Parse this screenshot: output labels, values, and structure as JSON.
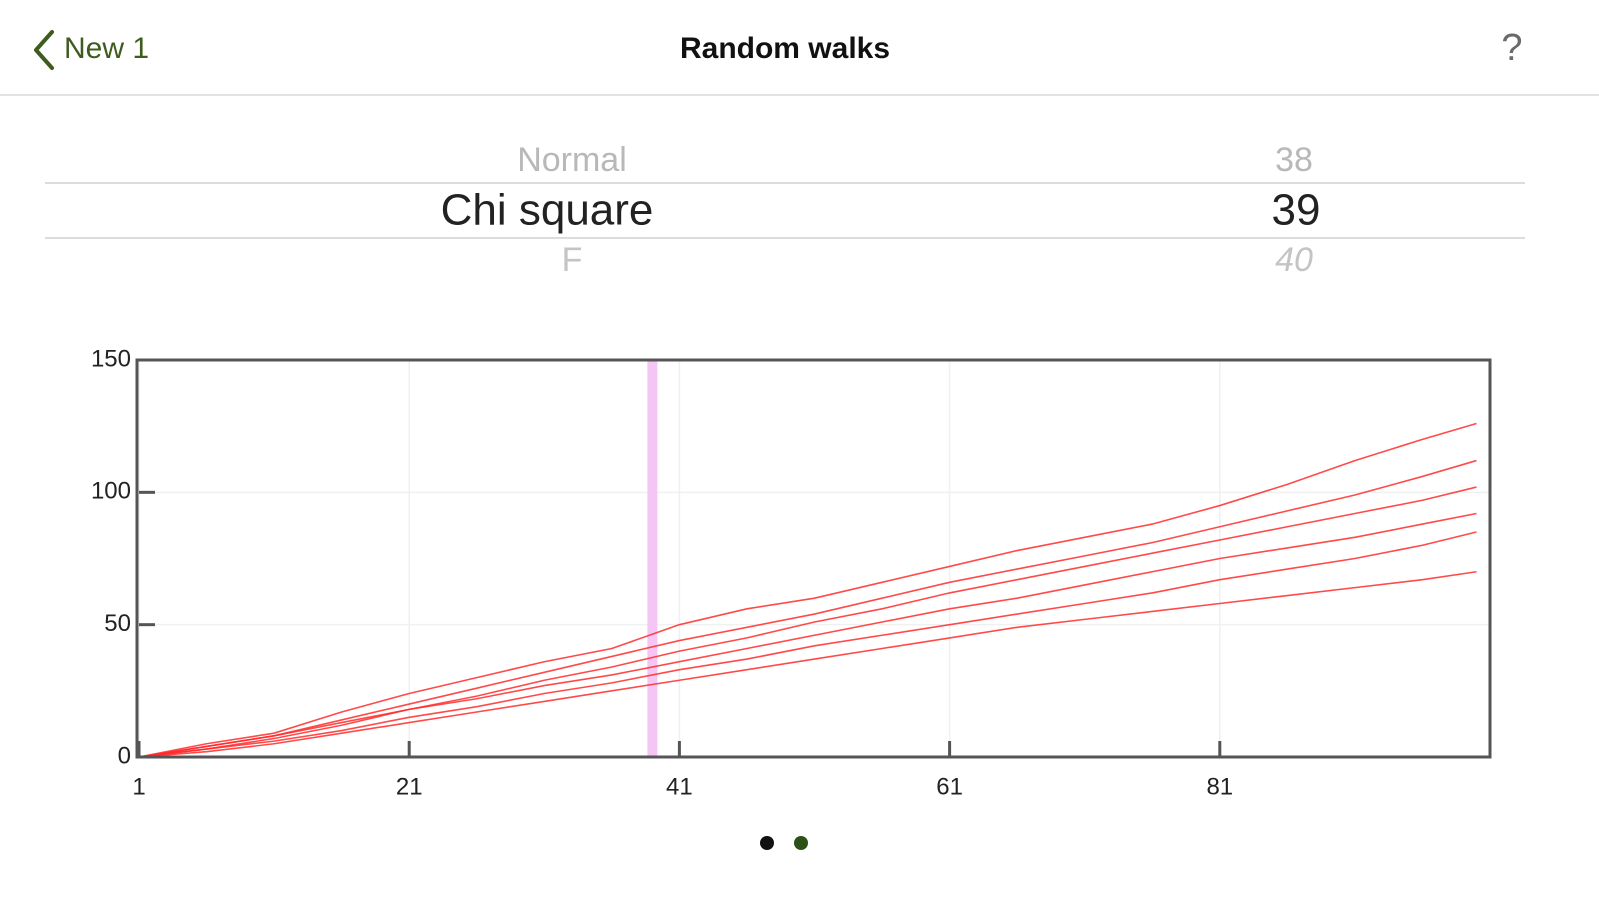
{
  "nav": {
    "back": "New 1",
    "title": "Random walks",
    "help": "?"
  },
  "picker": {
    "previous": {
      "label": "Normal",
      "number": 38
    },
    "selected": {
      "label": "Chi square",
      "number": 39
    },
    "next": {
      "label": "F",
      "number": 40
    }
  },
  "chart_data": {
    "type": "line",
    "color": "#ff2a2a",
    "grid": true,
    "xlim": [
      1,
      101
    ],
    "xticks": [
      1,
      21,
      41,
      61,
      81
    ],
    "ylim": [
      0,
      150
    ],
    "yticks": [
      0,
      50,
      100,
      150
    ],
    "x": [
      1,
      6,
      11,
      16,
      21,
      26,
      31,
      36,
      41,
      46,
      51,
      56,
      61,
      66,
      71,
      76,
      81,
      86,
      91,
      96,
      100
    ],
    "series": [
      {
        "values": [
          0,
          5,
          9,
          17,
          24,
          30,
          36,
          41,
          50,
          56,
          60,
          66,
          72,
          78,
          83,
          88,
          95,
          103,
          112,
          120,
          126
        ]
      },
      {
        "values": [
          0,
          4,
          8,
          14,
          20,
          26,
          32,
          38,
          44,
          49,
          54,
          60,
          66,
          71,
          76,
          81,
          87,
          93,
          99,
          106,
          112
        ]
      },
      {
        "values": [
          0,
          3,
          7,
          12,
          18,
          23,
          29,
          34,
          40,
          45,
          51,
          56,
          62,
          67,
          72,
          77,
          82,
          87,
          92,
          97,
          102
        ]
      },
      {
        "values": [
          0,
          4,
          8,
          13,
          18,
          22,
          27,
          31,
          36,
          41,
          46,
          51,
          56,
          60,
          65,
          70,
          75,
          79,
          83,
          88,
          92
        ]
      },
      {
        "values": [
          0,
          3,
          6,
          10,
          15,
          19,
          24,
          28,
          33,
          37,
          42,
          46,
          50,
          54,
          58,
          62,
          67,
          71,
          75,
          80,
          85
        ]
      },
      {
        "values": [
          0,
          2,
          5,
          9,
          13,
          17,
          21,
          25,
          29,
          33,
          37,
          41,
          45,
          49,
          52,
          55,
          58,
          61,
          64,
          67,
          70
        ]
      }
    ]
  }
}
